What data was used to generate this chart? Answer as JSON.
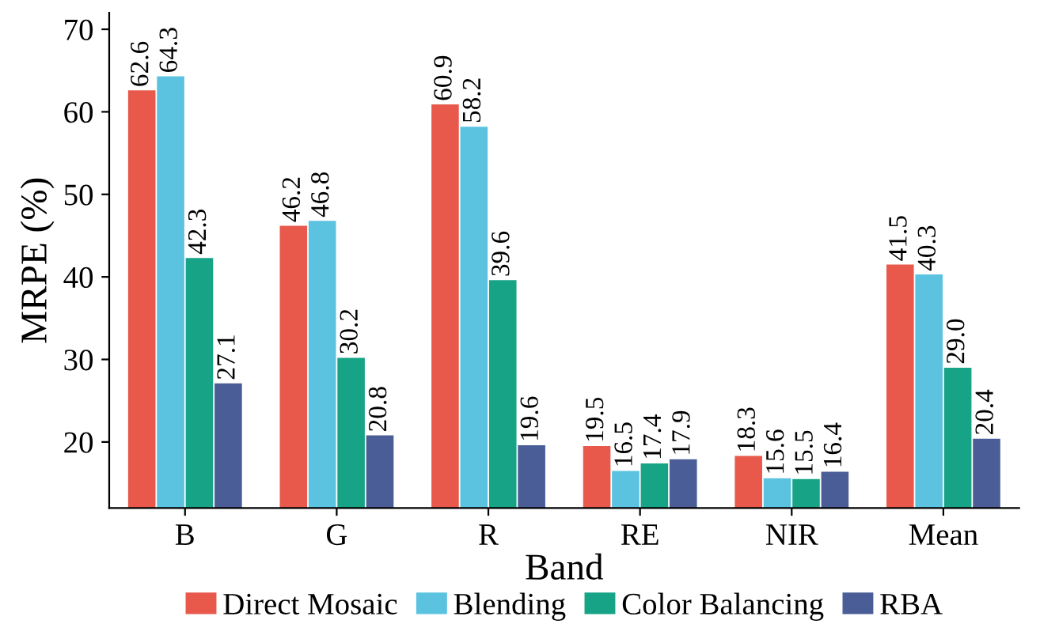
{
  "chart_data": {
    "type": "bar",
    "xlabel": "Band",
    "ylabel": "MRPE (%)",
    "categories": [
      "B",
      "G",
      "R",
      "RE",
      "NIR",
      "Mean"
    ],
    "series": [
      {
        "name": "Direct Mosaic",
        "color": "#e8594b",
        "values": [
          62.6,
          46.2,
          60.9,
          19.5,
          18.3,
          41.5
        ]
      },
      {
        "name": "Blending",
        "color": "#5bc3e0",
        "values": [
          64.3,
          46.8,
          58.2,
          16.5,
          15.6,
          40.3
        ]
      },
      {
        "name": "Color Balancing",
        "color": "#16a386",
        "values": [
          42.3,
          30.2,
          39.6,
          17.4,
          15.5,
          29.0
        ]
      },
      {
        "name": "RBA",
        "color": "#4a5d96",
        "values": [
          27.1,
          20.8,
          19.6,
          17.9,
          16.4,
          20.4
        ]
      }
    ],
    "value_labels": [
      [
        "62.6",
        "46.2",
        "60.9",
        "19.5",
        "18.3",
        "41.5"
      ],
      [
        "64.3",
        "46.8",
        "58.2",
        "16.5",
        "15.6",
        "40.3"
      ],
      [
        "42.3",
        "30.2",
        "39.6",
        "17.4",
        "15.5",
        "29.0"
      ],
      [
        "27.1",
        "20.8",
        "19.6",
        "17.9",
        "16.4",
        "20.4"
      ]
    ],
    "ylim": [
      12,
      72
    ],
    "yticks": [
      20,
      30,
      40,
      50,
      60,
      70
    ],
    "grid": false,
    "legend": "bottom"
  }
}
